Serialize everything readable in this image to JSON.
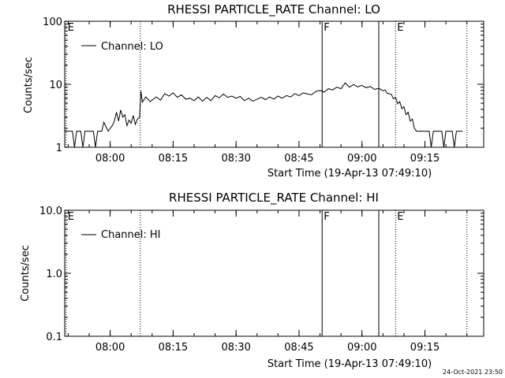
{
  "timestamp": "24-Oct-2021 23:50",
  "colors": {
    "line": "#000000",
    "background": "#ffffff"
  },
  "chart_data": [
    {
      "type": "line",
      "title": "RHESSI PARTICLE_RATE Channel: LO",
      "xlabel": "Start Time (19-Apr-13 07:49:10)",
      "ylabel": "Counts/sec",
      "yscale": "log",
      "ylim": [
        1,
        100
      ],
      "xlim": [
        "07:49:10",
        "09:29:00"
      ],
      "yticks": [
        "1",
        "10",
        "100"
      ],
      "xticks": [
        "08:00",
        "08:15",
        "08:30",
        "08:45",
        "09:00",
        "09:15"
      ],
      "legend": "Channel: LO",
      "legend_position": "top-left",
      "markers": [
        {
          "time": "07:49:30",
          "label": "E",
          "style": "dotted"
        },
        {
          "time": "08:07:10",
          "label": "",
          "style": "dotted"
        },
        {
          "time": "08:50:30",
          "label": "F",
          "style": "solid"
        },
        {
          "time": "09:04:00",
          "label": "",
          "style": "solid"
        },
        {
          "time": "09:08:00",
          "label": "E",
          "style": "dotted"
        },
        {
          "time": "09:25:00",
          "label": "",
          "style": "dotted"
        }
      ],
      "series": [
        {
          "name": "Channel: LO",
          "points": [
            [
              "07:49:10",
              1.8
            ],
            [
              "07:51:00",
              1.8
            ],
            [
              "07:51:30",
              1.0
            ],
            [
              "07:52:00",
              1.8
            ],
            [
              "07:53:00",
              1.8
            ],
            [
              "07:53:30",
              1.0
            ],
            [
              "07:54:00",
              1.8
            ],
            [
              "07:56:00",
              1.8
            ],
            [
              "07:56:30",
              1.0
            ],
            [
              "07:57:00",
              1.8
            ],
            [
              "07:58:00",
              1.8
            ],
            [
              "07:58:30",
              2.5
            ],
            [
              "07:59:30",
              1.8
            ],
            [
              "08:00:30",
              2.2
            ],
            [
              "08:01:00",
              2.6
            ],
            [
              "08:01:30",
              3.6
            ],
            [
              "08:02:00",
              2.6
            ],
            [
              "08:02:30",
              3.9
            ],
            [
              "08:03:00",
              3.0
            ],
            [
              "08:03:30",
              3.3
            ],
            [
              "08:04:00",
              2.2
            ],
            [
              "08:04:30",
              2.7
            ],
            [
              "08:05:00",
              2.4
            ],
            [
              "08:05:30",
              3.2
            ],
            [
              "08:06:00",
              2.3
            ],
            [
              "08:06:30",
              2.8
            ],
            [
              "08:07:00",
              3.0
            ],
            [
              "08:07:20",
              7.8
            ],
            [
              "08:07:40",
              5.2
            ],
            [
              "08:08:30",
              6.3
            ],
            [
              "08:09:30",
              5.3
            ],
            [
              "08:11:00",
              6.3
            ],
            [
              "08:12:00",
              5.6
            ],
            [
              "08:13:00",
              7.1
            ],
            [
              "08:14:00",
              6.5
            ],
            [
              "08:15:00",
              7.3
            ],
            [
              "08:16:00",
              6.2
            ],
            [
              "08:17:00",
              6.8
            ],
            [
              "08:18:00",
              5.8
            ],
            [
              "08:19:00",
              6.0
            ],
            [
              "08:20:00",
              5.5
            ],
            [
              "08:21:00",
              6.3
            ],
            [
              "08:22:00",
              5.4
            ],
            [
              "08:23:00",
              6.2
            ],
            [
              "08:24:00",
              5.5
            ],
            [
              "08:25:00",
              6.6
            ],
            [
              "08:26:00",
              6.1
            ],
            [
              "08:27:00",
              7.0
            ],
            [
              "08:28:00",
              6.2
            ],
            [
              "08:29:00",
              6.5
            ],
            [
              "08:30:00",
              6.0
            ],
            [
              "08:31:00",
              6.4
            ],
            [
              "08:32:00",
              5.5
            ],
            [
              "08:33:00",
              6.0
            ],
            [
              "08:34:00",
              5.4
            ],
            [
              "08:35:00",
              5.8
            ],
            [
              "08:36:00",
              6.2
            ],
            [
              "08:37:00",
              5.7
            ],
            [
              "08:38:00",
              6.3
            ],
            [
              "08:39:00",
              5.8
            ],
            [
              "08:40:00",
              6.5
            ],
            [
              "08:41:00",
              6.0
            ],
            [
              "08:42:00",
              6.6
            ],
            [
              "08:43:00",
              6.3
            ],
            [
              "08:44:00",
              7.1
            ],
            [
              "08:45:00",
              6.6
            ],
            [
              "08:46:00",
              7.3
            ],
            [
              "08:47:00",
              7.0
            ],
            [
              "08:48:00",
              6.8
            ],
            [
              "08:49:00",
              7.7
            ],
            [
              "08:50:00",
              8.0
            ],
            [
              "08:51:00",
              7.5
            ],
            [
              "08:52:00",
              8.5
            ],
            [
              "08:53:00",
              8.1
            ],
            [
              "08:54:00",
              9.0
            ],
            [
              "08:55:00",
              8.5
            ],
            [
              "08:56:00",
              10.5
            ],
            [
              "08:57:00",
              9.0
            ],
            [
              "08:58:00",
              9.9
            ],
            [
              "08:59:00",
              9.1
            ],
            [
              "09:00:00",
              9.6
            ],
            [
              "09:01:00",
              8.8
            ],
            [
              "09:02:00",
              9.2
            ],
            [
              "09:03:00",
              8.3
            ],
            [
              "09:04:00",
              8.6
            ],
            [
              "09:05:00",
              7.9
            ],
            [
              "09:05:30",
              8.1
            ],
            [
              "09:06:00",
              7.2
            ],
            [
              "09:07:00",
              6.9
            ],
            [
              "09:07:30",
              5.9
            ],
            [
              "09:08:00",
              6.2
            ],
            [
              "09:08:30",
              4.9
            ],
            [
              "09:09:00",
              5.3
            ],
            [
              "09:09:30",
              4.1
            ],
            [
              "09:10:00",
              4.4
            ],
            [
              "09:10:30",
              3.3
            ],
            [
              "09:11:00",
              3.6
            ],
            [
              "09:11:30",
              2.6
            ],
            [
              "09:12:00",
              2.8
            ],
            [
              "09:12:30",
              2.0
            ],
            [
              "09:13:00",
              1.8
            ],
            [
              "09:16:00",
              1.8
            ],
            [
              "09:16:30",
              1.0
            ],
            [
              "09:17:00",
              1.8
            ],
            [
              "09:19:00",
              1.8
            ],
            [
              "09:19:30",
              1.0
            ],
            [
              "09:20:00",
              1.8
            ],
            [
              "09:21:30",
              1.8
            ],
            [
              "09:22:00",
              1.0
            ],
            [
              "09:22:30",
              1.8
            ],
            [
              "09:24:00",
              1.8
            ]
          ]
        }
      ]
    },
    {
      "type": "line",
      "title": "RHESSI PARTICLE_RATE Channel: HI",
      "xlabel": "Start Time (19-Apr-13 07:49:10)",
      "ylabel": "Counts/sec",
      "yscale": "log",
      "ylim": [
        0.1,
        10
      ],
      "xlim": [
        "07:49:10",
        "09:29:00"
      ],
      "yticks": [
        "0.1",
        "1.0",
        "10.0"
      ],
      "xticks": [
        "08:00",
        "08:15",
        "08:30",
        "08:45",
        "09:00",
        "09:15"
      ],
      "legend": "Channel: HI",
      "legend_position": "top-left",
      "markers": [
        {
          "time": "07:49:30",
          "label": "E",
          "style": "dotted"
        },
        {
          "time": "08:07:10",
          "label": "",
          "style": "dotted"
        },
        {
          "time": "08:50:30",
          "label": "F",
          "style": "solid"
        },
        {
          "time": "09:04:00",
          "label": "",
          "style": "solid"
        },
        {
          "time": "09:08:00",
          "label": "E",
          "style": "dotted"
        },
        {
          "time": "09:25:00",
          "label": "",
          "style": "dotted"
        }
      ],
      "series": [
        {
          "name": "Channel: HI",
          "points": []
        }
      ]
    }
  ]
}
